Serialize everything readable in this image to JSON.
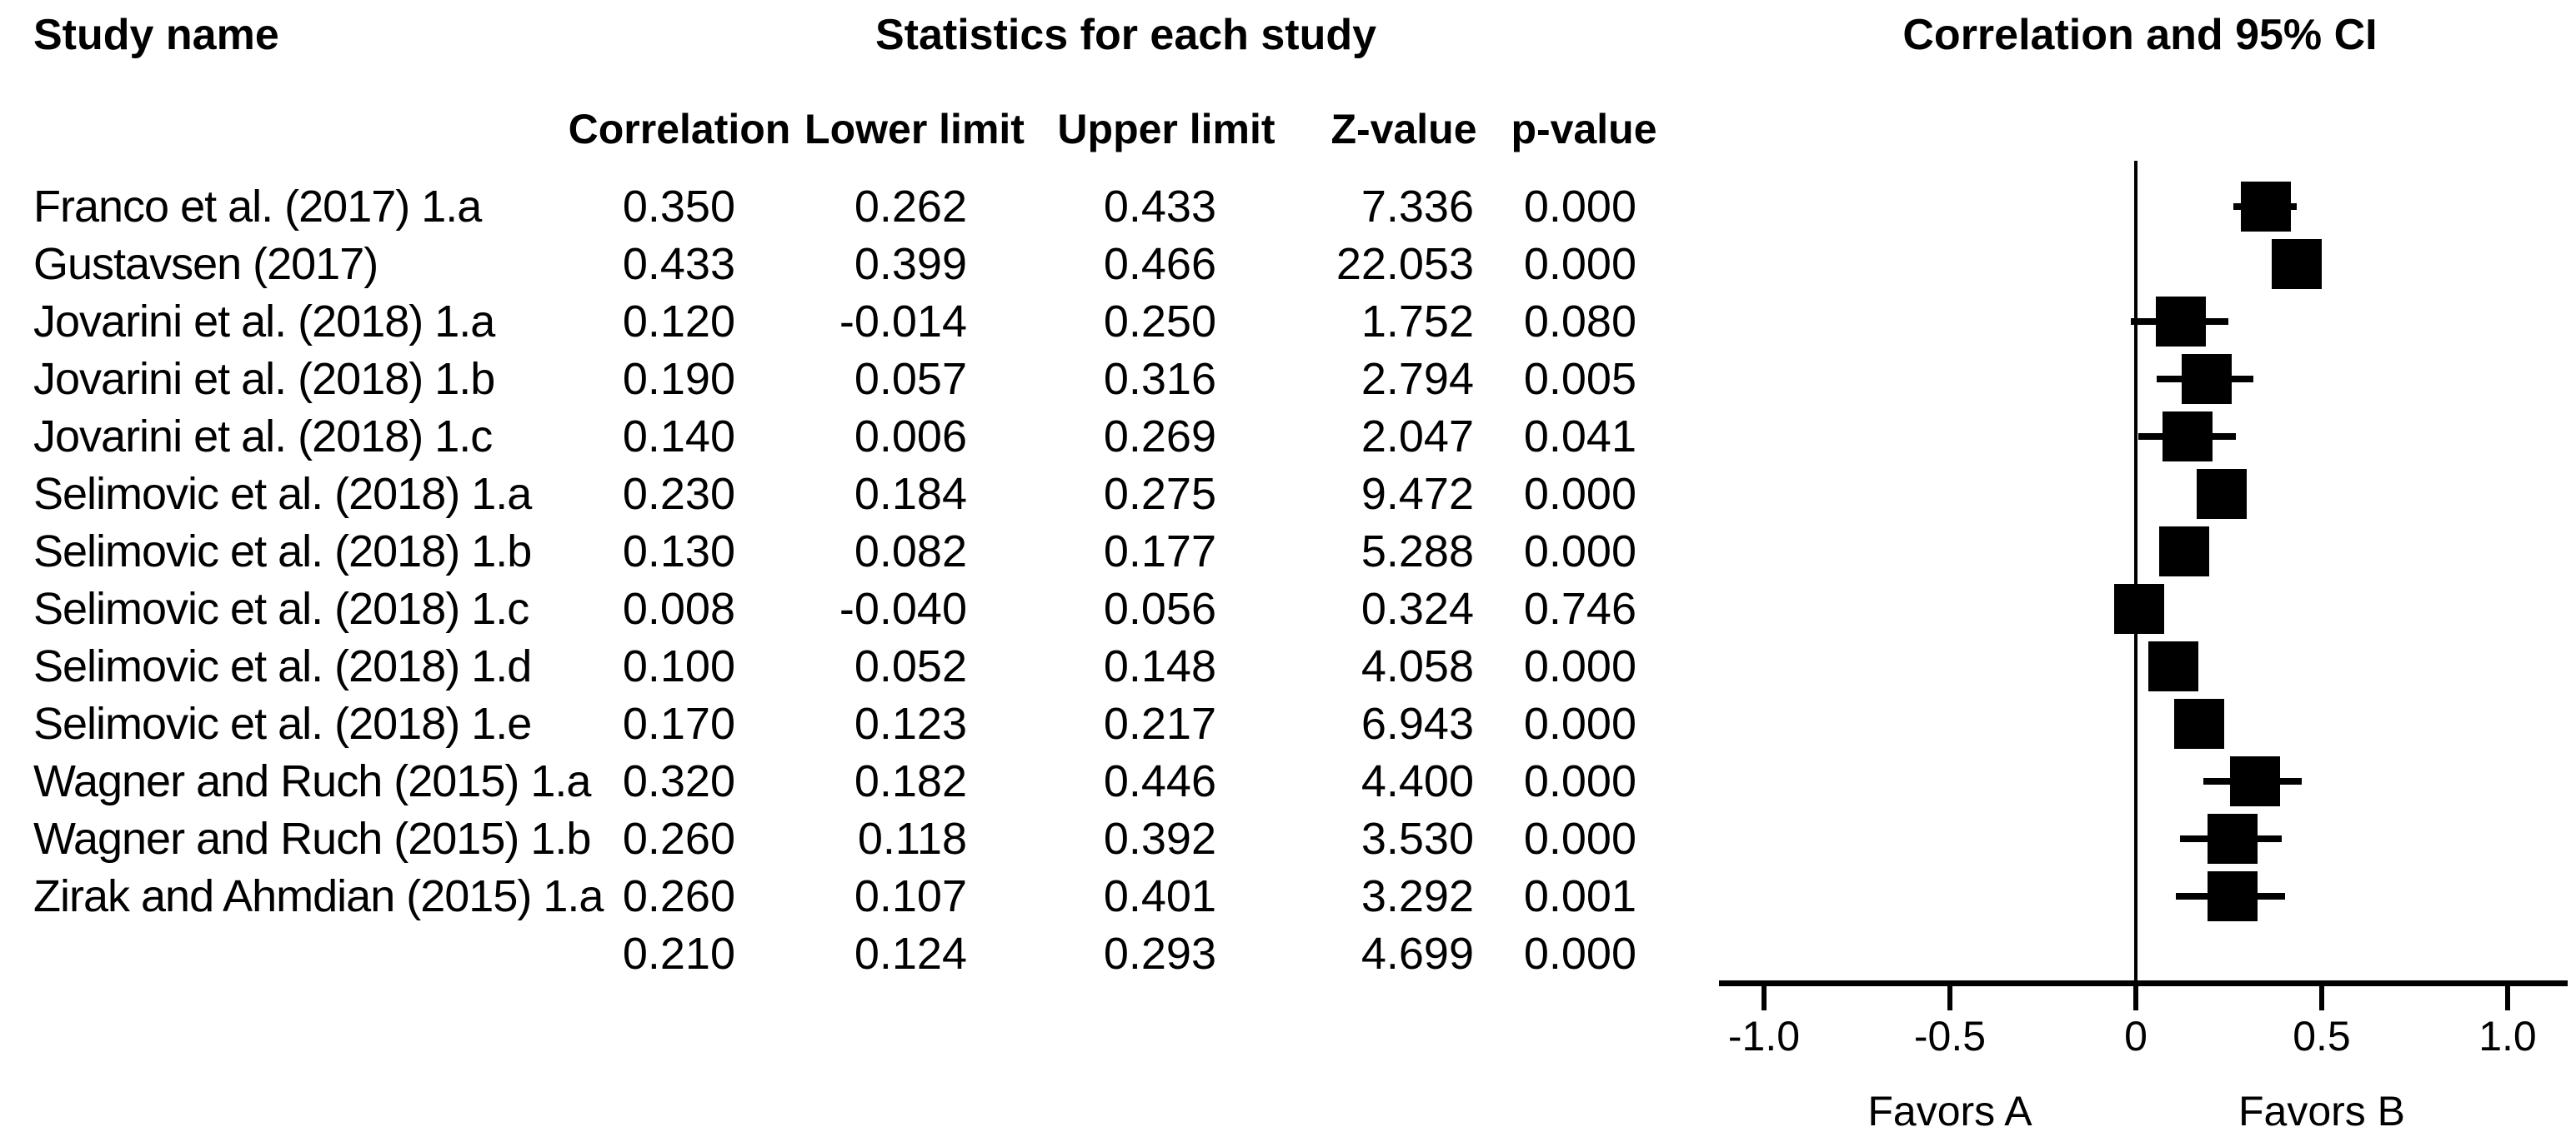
{
  "header": {
    "study_col_title": "Study name",
    "stats_title": "Statistics for each study",
    "plot_title": "Correlation and 95% CI",
    "columns": [
      "Correlation",
      "Lower limit",
      "Upper limit",
      "Z-value",
      "p-value"
    ]
  },
  "chart_data": {
    "type": "forest",
    "title": "Correlation and 95% CI",
    "xlim": [
      -1.0,
      1.0
    ],
    "x_ticks": [
      -1.0,
      -0.5,
      0,
      0.5,
      1.0
    ],
    "x_tick_labels": [
      "-1.0",
      "-0.5",
      "0",
      "0.5",
      "1.0"
    ],
    "favors_left": "Favors A",
    "favors_right": "Favors B",
    "marker_color": "#000000",
    "grid": false,
    "studies": [
      {
        "name": "Franco et al. (2017) 1.a",
        "correlation": "0.350",
        "lower": "0.262",
        "upper": "0.433",
        "z": "7.336",
        "p": "0.000"
      },
      {
        "name": "Gustavsen (2017)",
        "correlation": "0.433",
        "lower": "0.399",
        "upper": "0.466",
        "z": "22.053",
        "p": "0.000"
      },
      {
        "name": "Jovarini et al. (2018) 1.a",
        "correlation": "0.120",
        "lower": "-0.014",
        "upper": "0.250",
        "z": "1.752",
        "p": "0.080"
      },
      {
        "name": "Jovarini et al. (2018) 1.b",
        "correlation": "0.190",
        "lower": "0.057",
        "upper": "0.316",
        "z": "2.794",
        "p": "0.005"
      },
      {
        "name": "Jovarini et al. (2018) 1.c",
        "correlation": "0.140",
        "lower": "0.006",
        "upper": "0.269",
        "z": "2.047",
        "p": "0.041"
      },
      {
        "name": "Selimovic et al. (2018) 1.a",
        "correlation": "0.230",
        "lower": "0.184",
        "upper": "0.275",
        "z": "9.472",
        "p": "0.000"
      },
      {
        "name": "Selimovic et al. (2018) 1.b",
        "correlation": "0.130",
        "lower": "0.082",
        "upper": "0.177",
        "z": "5.288",
        "p": "0.000"
      },
      {
        "name": "Selimovic et al. (2018) 1.c",
        "correlation": "0.008",
        "lower": "-0.040",
        "upper": "0.056",
        "z": "0.324",
        "p": "0.746"
      },
      {
        "name": "Selimovic et al. (2018) 1.d",
        "correlation": "0.100",
        "lower": "0.052",
        "upper": "0.148",
        "z": "4.058",
        "p": "0.000"
      },
      {
        "name": "Selimovic et al. (2018) 1.e",
        "correlation": "0.170",
        "lower": "0.123",
        "upper": "0.217",
        "z": "6.943",
        "p": "0.000"
      },
      {
        "name": "Wagner and Ruch (2015) 1.a",
        "correlation": "0.320",
        "lower": "0.182",
        "upper": "0.446",
        "z": "4.400",
        "p": "0.000"
      },
      {
        "name": "Wagner and Ruch (2015) 1.b",
        "correlation": "0.260",
        "lower": "0.118",
        "upper": "0.392",
        "z": "3.530",
        "p": "0.000"
      },
      {
        "name": "Zirak and Ahmdian (2015) 1.a",
        "correlation": "0.260",
        "lower": "0.107",
        "upper": "0.401",
        "z": "3.292",
        "p": "0.001"
      }
    ],
    "summary": {
      "name": "",
      "correlation": "0.210",
      "lower": "0.124",
      "upper": "0.293",
      "z": "4.699",
      "p": "0.000"
    }
  }
}
